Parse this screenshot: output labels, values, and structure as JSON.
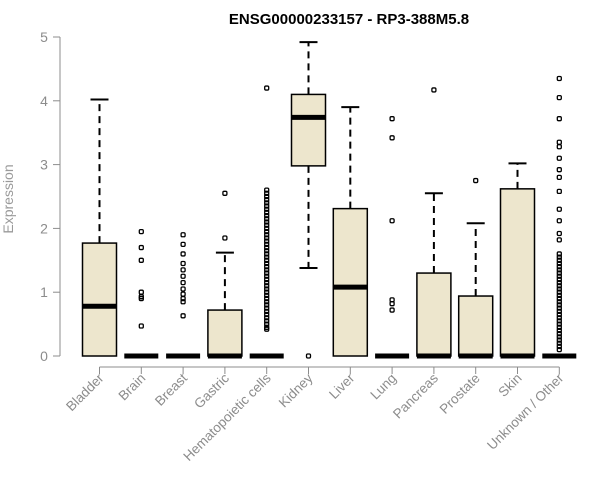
{
  "chart_data": {
    "type": "boxplot",
    "title": "ENSG00000233157 - RP3-388M5.8",
    "ylabel": "Expression",
    "ylim": [
      0,
      5
    ],
    "yticks": [
      "0",
      "1",
      "2",
      "3",
      "4",
      "5"
    ],
    "grid": false,
    "box_fill": "#ede6cd",
    "categories": [
      "Bladder",
      "Brain",
      "Breast",
      "Gastric",
      "Hematopoietic cells",
      "Kidney",
      "Liver",
      "Lung",
      "Pancreas",
      "Prostate",
      "Skin",
      "Unknown / Other"
    ],
    "boxes": [
      {
        "whisker_low": 0,
        "q1": 0,
        "median": 0.78,
        "q3": 1.77,
        "whisker_high": 4.02,
        "outliers": []
      },
      {
        "whisker_low": 0,
        "q1": 0,
        "median": 0,
        "q3": 0,
        "whisker_high": 0,
        "outliers": [
          1.95,
          1.7,
          1.5,
          1.0,
          0.93,
          0.9,
          0.47
        ]
      },
      {
        "whisker_low": 0,
        "q1": 0,
        "median": 0,
        "q3": 0,
        "whisker_high": 0,
        "outliers": [
          1.9,
          1.75,
          1.6,
          1.45,
          1.35,
          1.25,
          1.15,
          1.05,
          0.97,
          0.9,
          0.85,
          0.63
        ]
      },
      {
        "whisker_low": 0,
        "q1": 0,
        "median": 0,
        "q3": 0.72,
        "whisker_high": 1.62,
        "outliers": [
          2.55,
          1.85
        ]
      },
      {
        "whisker_low": 0,
        "q1": 0,
        "median": 0,
        "q3": 0,
        "whisker_high": 0,
        "outliers": [
          4.2,
          2.6,
          2.55,
          2.5,
          2.45,
          2.4,
          2.35,
          2.3,
          2.25,
          2.2,
          2.15,
          2.1,
          2.05,
          2.0,
          1.95,
          1.9,
          1.85,
          1.8,
          1.75,
          1.7,
          1.65,
          1.6,
          1.55,
          1.5,
          1.45,
          1.4,
          1.35,
          1.3,
          1.25,
          1.2,
          1.15,
          1.1,
          1.05,
          1.0,
          0.95,
          0.9,
          0.85,
          0.8,
          0.75,
          0.7,
          0.65,
          0.6,
          0.55,
          0.5,
          0.45,
          0.42
        ]
      },
      {
        "whisker_low": 1.38,
        "q1": 2.98,
        "median": 3.74,
        "q3": 4.1,
        "whisker_high": 4.92,
        "outliers": [
          0
        ]
      },
      {
        "whisker_low": 0,
        "q1": 0,
        "median": 1.08,
        "q3": 2.31,
        "whisker_high": 3.9,
        "outliers": []
      },
      {
        "whisker_low": 0,
        "q1": 0,
        "median": 0,
        "q3": 0,
        "whisker_high": 0,
        "outliers": [
          3.72,
          3.42,
          2.12,
          0.88,
          0.82,
          0.72
        ]
      },
      {
        "whisker_low": 0,
        "q1": 0,
        "median": 0,
        "q3": 1.3,
        "whisker_high": 2.55,
        "outliers": [
          4.17
        ]
      },
      {
        "whisker_low": 0,
        "q1": 0,
        "median": 0,
        "q3": 0.94,
        "whisker_high": 2.08,
        "outliers": [
          2.75
        ]
      },
      {
        "whisker_low": 0,
        "q1": 0,
        "median": 0,
        "q3": 2.62,
        "whisker_high": 3.02,
        "outliers": []
      },
      {
        "whisker_low": 0,
        "q1": 0,
        "median": 0,
        "q3": 0,
        "whisker_high": 0,
        "outliers": [
          4.35,
          4.05,
          3.72,
          3.35,
          3.28,
          3.1,
          2.92,
          2.8,
          2.58,
          2.3,
          2.12,
          1.92,
          1.82,
          1.6,
          1.55,
          1.5,
          1.45,
          1.4,
          1.35,
          1.3,
          1.25,
          1.2,
          1.15,
          1.1,
          1.05,
          1.0,
          0.95,
          0.9,
          0.85,
          0.8,
          0.75,
          0.7,
          0.65,
          0.6,
          0.55,
          0.5,
          0.45,
          0.4,
          0.35,
          0.3,
          0.25,
          0.2,
          0.15,
          0.1
        ]
      }
    ]
  }
}
